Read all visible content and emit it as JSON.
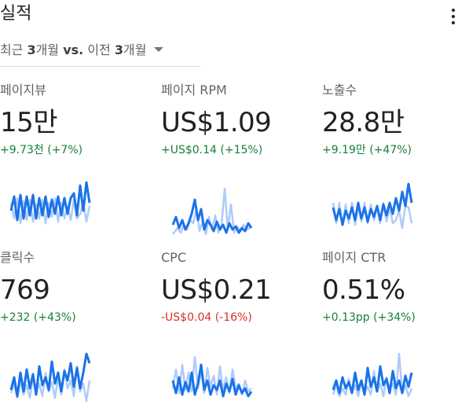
{
  "header": {
    "title": "실적",
    "more_icon": "more-vert-icon"
  },
  "period": {
    "prefix": "최근 ",
    "current_num": "3",
    "current_unit": "개월 ",
    "vs": "vs.",
    "mid": " 이전 ",
    "prev_num": "3",
    "prev_unit": "개월",
    "dropdown_icon": "arrow-drop-down-icon"
  },
  "colors": {
    "current_series": "#1a73e8",
    "previous_series": "#aecbfa",
    "positive": "#188038",
    "negative": "#d93025"
  },
  "metrics": [
    {
      "label": "페이지뷰",
      "value": "15만",
      "change": "+9.73천 (+7%)",
      "trend": "positive"
    },
    {
      "label": "페이지 RPM",
      "value": "US$1.09",
      "change": "+US$0.14 (+15%)",
      "trend": "positive"
    },
    {
      "label": "노출수",
      "value": "28.8만",
      "change": "+9.19만 (+47%)",
      "trend": "positive"
    },
    {
      "label": "클릭수",
      "value": "769",
      "change": "+232 (+43%)",
      "trend": "positive"
    },
    {
      "label": "CPC",
      "value": "US$0.21",
      "change": "-US$0.04 (-16%)",
      "trend": "negative"
    },
    {
      "label": "페이지 CTR",
      "value": "0.51%",
      "change": "+0.13pp (+34%)",
      "trend": "positive"
    }
  ]
}
